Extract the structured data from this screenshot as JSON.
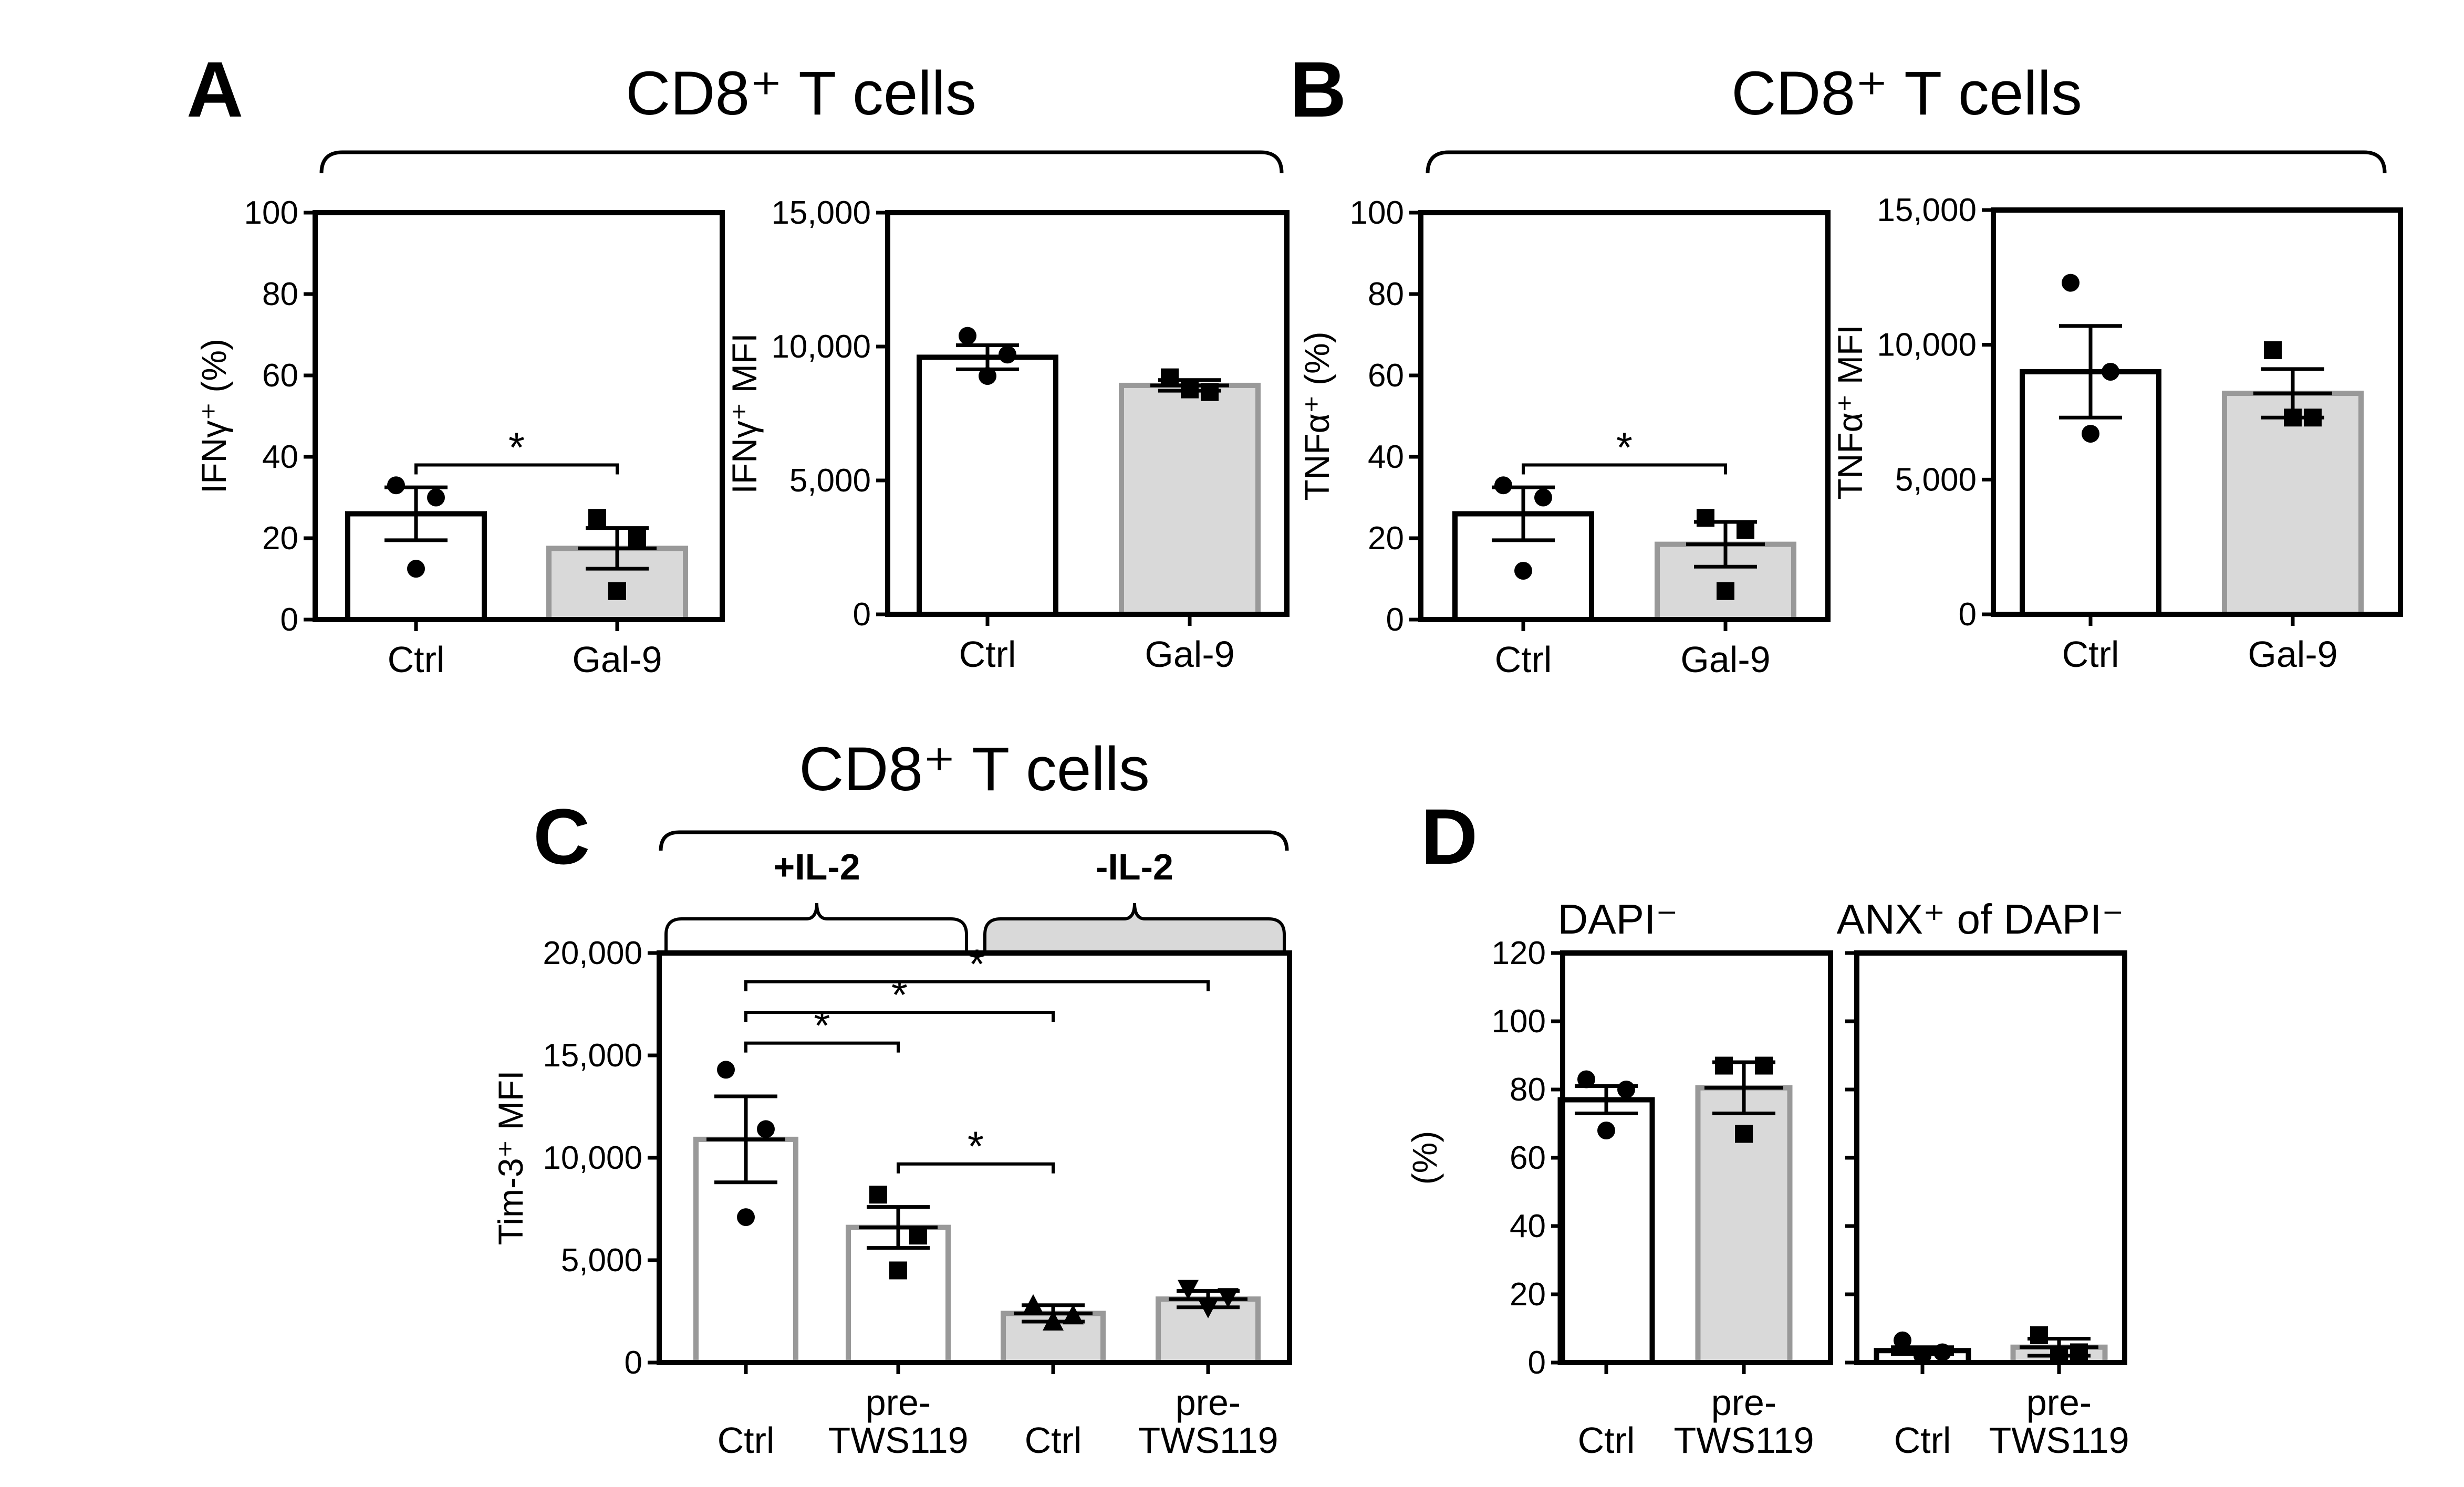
{
  "colors": {
    "ctrl_fill": "#ffffff",
    "treated_fill": "#d9d9d9",
    "black": "#000000",
    "grey_edge": "#999999"
  },
  "labels": {
    "panel_a": "A",
    "panel_b": "B",
    "panel_c": "C",
    "panel_d": "D",
    "title_ab_a": "CD8⁺ T cells",
    "title_ab_b": "CD8⁺ T cells",
    "title_c": "CD8⁺ T cells",
    "il2_plus": "+IL-2",
    "il2_minus": "-IL-2",
    "d_left": "DAPI⁻",
    "d_right": "ANX⁺ of DAPI⁻"
  },
  "chart_data": [
    {
      "id": "A1",
      "type": "bar",
      "title": "",
      "categories": [
        "Ctrl",
        "Gal-9"
      ],
      "values": [
        26,
        17.5
      ],
      "sem": [
        6.5,
        5
      ],
      "points": [
        [
          33,
          30,
          12.5
        ],
        [
          25,
          20,
          7
        ]
      ],
      "markers": [
        "circle",
        "square"
      ],
      "ylabel": "IFNγ⁺ (%)",
      "ylim": [
        0,
        100
      ],
      "yticks": [
        0,
        20,
        40,
        60,
        80,
        100
      ],
      "ytick_labels": [
        "0",
        "20",
        "40",
        "60",
        "80",
        "100"
      ],
      "significance": [
        {
          "from": 0,
          "to": 1,
          "label": "*",
          "y": 38
        }
      ]
    },
    {
      "id": "A2",
      "type": "bar",
      "title": "",
      "categories": [
        "Ctrl",
        "Gal-9"
      ],
      "values": [
        9600,
        8550
      ],
      "sem": [
        450,
        200
      ],
      "points": [
        [
          10400,
          9700,
          8900
        ],
        [
          8850,
          8300,
          8400
        ]
      ],
      "markers": [
        "circle",
        "square"
      ],
      "ylabel": "IFNγ⁺ MFI",
      "ylim": [
        0,
        15000
      ],
      "yticks": [
        0,
        5000,
        10000,
        15000
      ],
      "ytick_labels": [
        "0",
        "5,000",
        "10,000",
        "15,000"
      ],
      "significance": []
    },
    {
      "id": "B1",
      "type": "bar",
      "title": "",
      "categories": [
        "Ctrl",
        "Gal-9"
      ],
      "values": [
        26,
        18.5
      ],
      "sem": [
        6.5,
        5.5
      ],
      "points": [
        [
          33,
          30,
          12
        ],
        [
          25,
          22,
          7
        ]
      ],
      "markers": [
        "circle",
        "square"
      ],
      "ylabel": "TNFα⁺ (%)",
      "ylim": [
        0,
        100
      ],
      "yticks": [
        0,
        20,
        40,
        60,
        80,
        100
      ],
      "ytick_labels": [
        "0",
        "20",
        "40",
        "60",
        "80",
        "100"
      ],
      "significance": [
        {
          "from": 0,
          "to": 1,
          "label": "*",
          "y": 38
        }
      ]
    },
    {
      "id": "B2",
      "type": "bar",
      "title": "",
      "categories": [
        "Ctrl",
        "Gal-9"
      ],
      "values": [
        9000,
        8200
      ],
      "sem": [
        1700,
        900
      ],
      "points": [
        [
          12300,
          9000,
          6700
        ],
        [
          9800,
          7300,
          7300
        ]
      ],
      "markers": [
        "circle",
        "square"
      ],
      "ylabel": "TNFα⁺ MFI",
      "ylim": [
        0,
        15000
      ],
      "yticks": [
        0,
        5000,
        10000,
        15000
      ],
      "ytick_labels": [
        "0",
        "5,000",
        "10,000",
        "15,000"
      ],
      "significance": []
    },
    {
      "id": "C",
      "type": "bar",
      "title": "CD8⁺ T cells",
      "categories": [
        "Ctrl",
        "pre-\nTWS119",
        "Ctrl",
        "pre-\nTWS119"
      ],
      "groups": [
        "+IL-2",
        "+IL-2",
        "-IL-2",
        "-IL-2"
      ],
      "values": [
        10900,
        6600,
        2400,
        3100
      ],
      "sem": [
        2100,
        1000,
        400,
        400
      ],
      "points": [
        [
          14300,
          11400,
          7100
        ],
        [
          8200,
          6200,
          4500
        ],
        [
          2800,
          2300,
          2000
        ],
        [
          3600,
          3200,
          2700
        ]
      ],
      "markers": [
        "circle",
        "square",
        "triangle",
        "triangle-down"
      ],
      "ylabel": "Tim-3⁺ MFI",
      "ylim": [
        0,
        20000
      ],
      "yticks": [
        0,
        5000,
        10000,
        15000,
        20000
      ],
      "ytick_labels": [
        "0",
        "5,000",
        "10,000",
        "15,000",
        "20,000"
      ],
      "significance": [
        {
          "from": 0,
          "to": 3,
          "label": "*",
          "y": 18600
        },
        {
          "from": 0,
          "to": 2,
          "label": "*",
          "y": 17100
        },
        {
          "from": 0,
          "to": 1,
          "label": "*",
          "y": 15600
        },
        {
          "from": 1,
          "to": 2,
          "label": "*",
          "y": 9700
        }
      ]
    },
    {
      "id": "D1",
      "type": "bar",
      "title": "DAPI⁻",
      "categories": [
        "Ctrl",
        "pre-\nTWS119"
      ],
      "values": [
        77,
        80.5
      ],
      "sem": [
        4,
        7.5
      ],
      "points": [
        [
          83,
          80,
          68
        ],
        [
          87,
          87,
          67
        ]
      ],
      "markers": [
        "circle",
        "square"
      ],
      "ylabel": "(%)",
      "ylim": [
        0,
        120
      ],
      "yticks": [
        0,
        20,
        40,
        60,
        80,
        100,
        120
      ],
      "ytick_labels": [
        "0",
        "20",
        "40",
        "60",
        "80",
        "100",
        "120"
      ],
      "significance": []
    },
    {
      "id": "D2",
      "type": "bar",
      "title": "ANX⁺ of DAPI⁻",
      "categories": [
        "Ctrl",
        "pre-\nTWS119"
      ],
      "values": [
        3.5,
        4.5
      ],
      "sem": [
        1,
        2.5
      ],
      "points": [
        [
          6.5,
          3,
          2
        ],
        [
          8,
          3,
          2
        ]
      ],
      "markers": [
        "circle",
        "square"
      ],
      "ylabel": "",
      "ylim": [
        0,
        120
      ],
      "yticks": [
        0,
        20,
        40,
        60,
        80,
        100,
        120
      ],
      "ytick_labels": [],
      "significance": []
    }
  ]
}
